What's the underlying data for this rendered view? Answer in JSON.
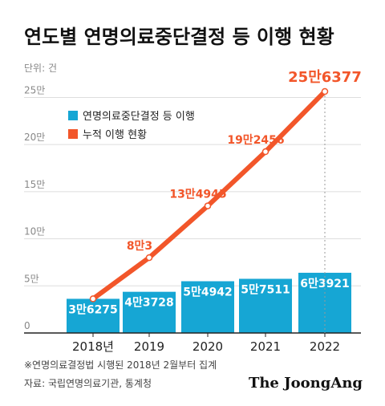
{
  "title": "연도별 연명의료중단결정 등 이행 현황",
  "unit_label": "단위: 건",
  "footnote": "※연명의료결정법 시행된 2018년 2월부터 집계",
  "source": "자료: 국립연명의료기관, 통계청",
  "logo": "The JoongAng",
  "colors": {
    "bar": "#16a6d4",
    "line": "#f2562a",
    "grid": "#dddddd",
    "axis": "#222222"
  },
  "chart_data": {
    "type": "bar+line",
    "categories": [
      "2018년",
      "2019",
      "2020",
      "2021",
      "2022"
    ],
    "y_ticks": [
      {
        "value": 0,
        "label": "0"
      },
      {
        "value": 50000,
        "label": "5만"
      },
      {
        "value": 100000,
        "label": "10만"
      },
      {
        "value": 150000,
        "label": "15만"
      },
      {
        "value": 200000,
        "label": "20만"
      },
      {
        "value": 250000,
        "label": "25만"
      }
    ],
    "ylim": [
      0,
      270000
    ],
    "grid": true,
    "legend_position": "top-left",
    "series": [
      {
        "name": "연명의료중단결정 등 이행",
        "type": "bar",
        "values": [
          36275,
          43728,
          54942,
          57511,
          63921
        ],
        "labels": [
          "3만6275",
          "4만3728",
          "5만4942",
          "5만7511",
          "6만3921"
        ]
      },
      {
        "name": "누적 이행 현황",
        "type": "line",
        "values": [
          36275,
          80003,
          134945,
          192456,
          256377
        ],
        "labels": [
          "",
          "8만3",
          "13만4945",
          "19만2456",
          "25만6377"
        ]
      }
    ]
  }
}
